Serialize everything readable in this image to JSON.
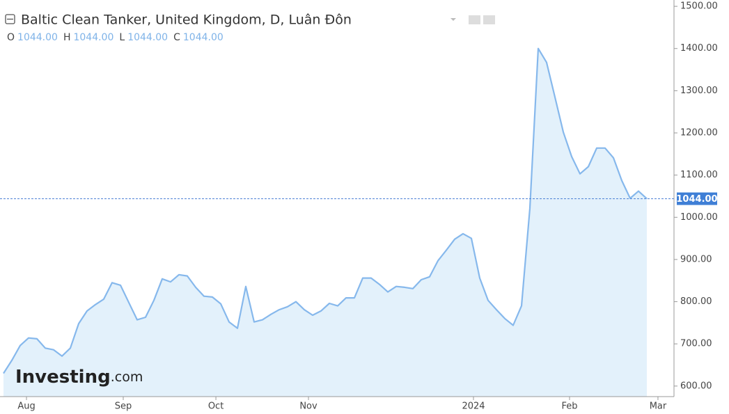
{
  "chart_data": {
    "type": "area",
    "title": "Baltic Clean Tanker, United Kingdom, D, Luân Đôn",
    "ohlc": [
      {
        "key": "O",
        "value": "1044.00"
      },
      {
        "key": "H",
        "value": "1044.00"
      },
      {
        "key": "L",
        "value": "1044.00"
      },
      {
        "key": "C",
        "value": "1044.00"
      }
    ],
    "logo": {
      "main": "Investing",
      "suffix": ".com"
    },
    "color": "#86b8ec",
    "fill": "#e3f1fb",
    "values": [
      630,
      661,
      696,
      714,
      712,
      690,
      686,
      671,
      690,
      748,
      778,
      793,
      806,
      845,
      839,
      798,
      757,
      763,
      803,
      854,
      847,
      864,
      861,
      834,
      813,
      811,
      795,
      752,
      737,
      836,
      752,
      757,
      770,
      781,
      788,
      800,
      781,
      768,
      778,
      796,
      790,
      809,
      809,
      856,
      856,
      841,
      823,
      836,
      834,
      831,
      852,
      859,
      897,
      922,
      948,
      961,
      950,
      856,
      803,
      781,
      760,
      744,
      790,
      1021,
      1400,
      1367,
      1285,
      1202,
      1144,
      1103,
      1120,
      1164,
      1164,
      1141,
      1087,
      1045,
      1062,
      1044
    ],
    "xlim": [
      -0.42,
      80.25
    ],
    "xticks": [
      {
        "value": 2.75,
        "label": "Aug"
      },
      {
        "value": 14.33,
        "label": "Sep"
      },
      {
        "value": 25.42,
        "label": "Oct"
      },
      {
        "value": 36.5,
        "label": "Nov"
      },
      {
        "value": 56.25,
        "label": "2024"
      },
      {
        "value": 67.75,
        "label": "Feb"
      },
      {
        "value": 78.33,
        "label": "Mar"
      }
    ],
    "ylim": [
      575,
      1515
    ],
    "yticks": [
      {
        "value": 600,
        "label": "600.00"
      },
      {
        "value": 700,
        "label": "700.00"
      },
      {
        "value": 800,
        "label": "800.00"
      },
      {
        "value": 900,
        "label": "900.00"
      },
      {
        "value": 1000,
        "label": "1000.00"
      },
      {
        "value": 1100,
        "label": "1100.00"
      },
      {
        "value": 1200,
        "label": "1200.00"
      },
      {
        "value": 1300,
        "label": "1300.00"
      },
      {
        "value": 1400,
        "label": "1400.00"
      },
      {
        "value": 1500,
        "label": "1500.00"
      }
    ],
    "last_value": {
      "value": 1044,
      "label": "1044.00"
    }
  }
}
